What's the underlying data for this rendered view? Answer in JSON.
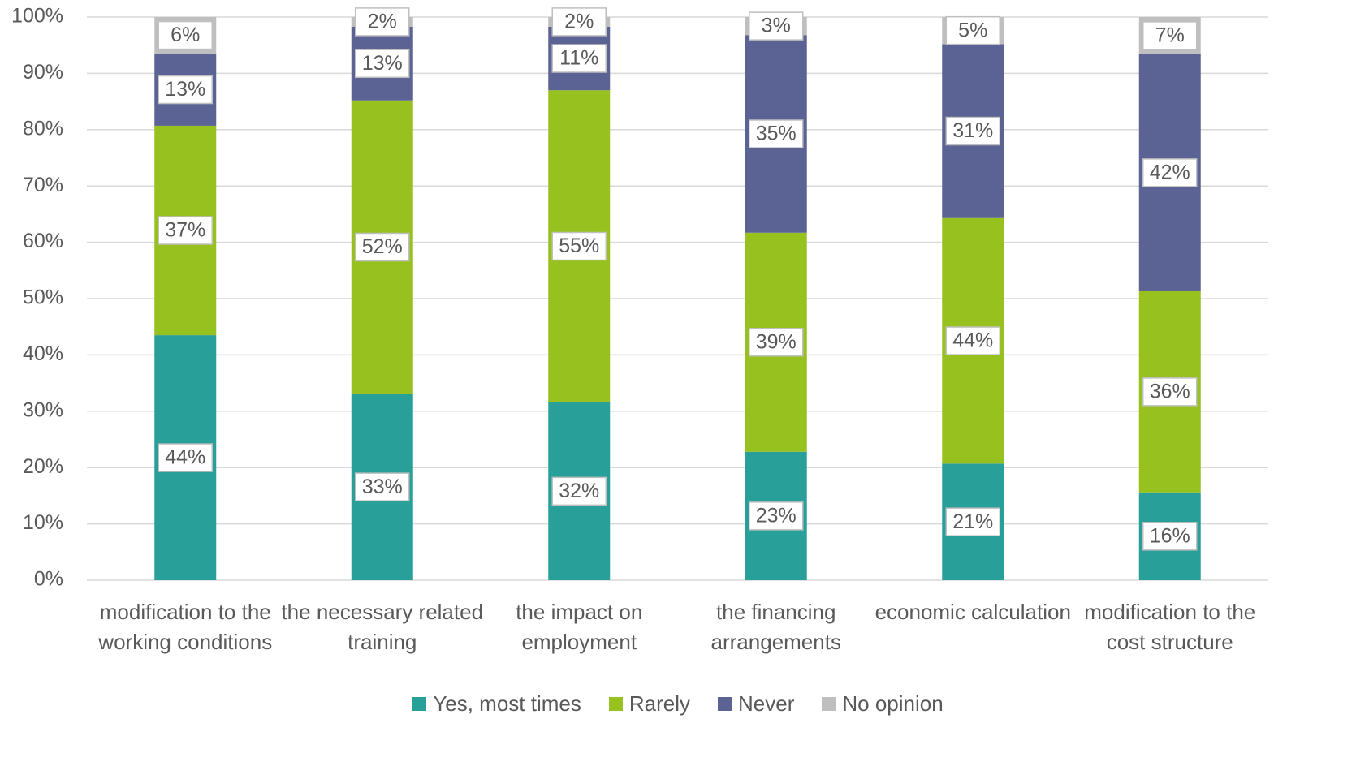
{
  "chart_data": {
    "type": "stacked_bar",
    "categories": [
      "modification to the working conditions",
      "the necessary related training",
      "the impact on employment",
      "the financing arrangements",
      "economic calculation",
      "modification to the cost structure"
    ],
    "series": [
      {
        "name": "Yes, most times",
        "color": "#289f98",
        "values": [
          43.5,
          33.1,
          31.6,
          22.8,
          20.7,
          15.6
        ],
        "value_labels": [
          "44%",
          "33%",
          "32%",
          "23%",
          "21%",
          "16%"
        ]
      },
      {
        "name": "Rarely",
        "color": "#97c11f",
        "values": [
          37.2,
          52.1,
          55.4,
          38.9,
          43.6,
          35.7
        ],
        "value_labels": [
          "37%",
          "52%",
          "55%",
          "39%",
          "44%",
          "36%"
        ]
      },
      {
        "name": "Never",
        "color": "#5b6394",
        "values": [
          12.8,
          13.1,
          11.3,
          35.1,
          30.9,
          42.1
        ],
        "value_labels": [
          "13%",
          "13%",
          "11%",
          "35%",
          "31%",
          "42%"
        ]
      },
      {
        "name": "No opinion",
        "color": "#bfbfbf",
        "values": [
          6.5,
          1.7,
          1.7,
          3.2,
          4.8,
          6.6
        ],
        "value_labels": [
          "6%",
          "2%",
          "2%",
          "3%",
          "5%",
          "7%"
        ]
      }
    ],
    "ylim": [
      0,
      100
    ],
    "yticks": [
      {
        "value": 0,
        "label": "0%"
      },
      {
        "value": 10,
        "label": "10%"
      },
      {
        "value": 20,
        "label": "20%"
      },
      {
        "value": 30,
        "label": "30%"
      },
      {
        "value": 40,
        "label": "40%"
      },
      {
        "value": 50,
        "label": "50%"
      },
      {
        "value": 60,
        "label": "60%"
      },
      {
        "value": 70,
        "label": "70%"
      },
      {
        "value": 80,
        "label": "80%"
      },
      {
        "value": 90,
        "label": "90%"
      },
      {
        "value": 100,
        "label": "100%"
      }
    ],
    "grid": true,
    "legend": "bottom"
  }
}
